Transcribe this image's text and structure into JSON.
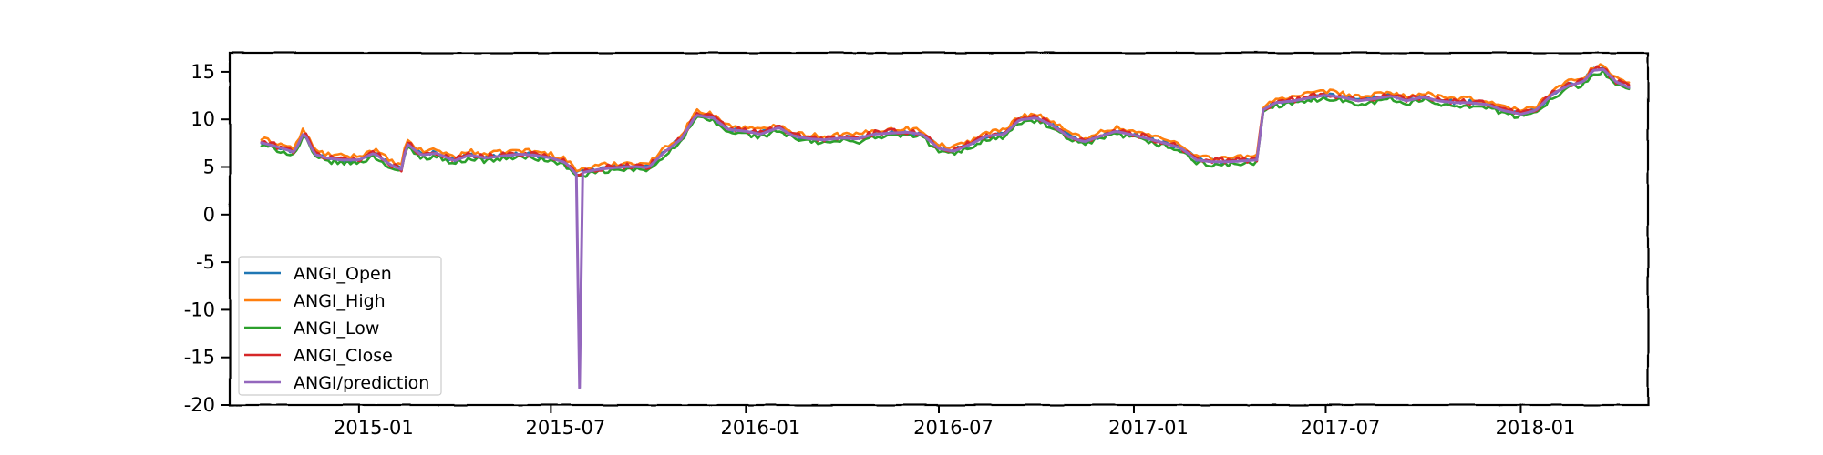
{
  "chart_data": {
    "type": "line",
    "title": "",
    "xlabel": "",
    "ylabel": "",
    "xlim": [
      "2014-09-01",
      "2018-05-01"
    ],
    "ylim": [
      -20,
      17
    ],
    "y_ticks": [
      15,
      10,
      5,
      0,
      -5,
      -10,
      -15,
      -20
    ],
    "y_tick_labels": [
      "15",
      "10",
      "5",
      "0",
      "-5",
      "-10",
      "-15",
      "-20"
    ],
    "x_ticks": [
      "2015-01-01",
      "2015-07-01",
      "2016-01-01",
      "2016-07-01",
      "2017-01-01",
      "2017-07-01",
      "2018-01-01"
    ],
    "x_tick_labels": [
      "2015-01",
      "2015-07",
      "2016-01",
      "2016-07",
      "2017-01",
      "2017-07",
      "2018-01"
    ],
    "grid": false,
    "legend_position": "lower-left",
    "style": "xkcd",
    "colors": {
      "ANGI_Open": "#1f77b4",
      "ANGI_High": "#ff7f0e",
      "ANGI_Low": "#2ca02c",
      "ANGI_Close": "#d62728",
      "ANGI/prediction": "#9467bd"
    },
    "series": [
      {
        "name": "ANGI_Open"
      },
      {
        "name": "ANGI_High"
      },
      {
        "name": "ANGI_Low"
      },
      {
        "name": "ANGI_Close"
      },
      {
        "name": "ANGI/prediction"
      }
    ],
    "base_x": [
      "2014-10-01",
      "2014-10-15",
      "2014-11-01",
      "2014-11-10",
      "2014-11-20",
      "2014-12-01",
      "2014-12-15",
      "2015-01-01",
      "2015-01-15",
      "2015-02-01",
      "2015-02-10",
      "2015-02-15",
      "2015-03-01",
      "2015-03-15",
      "2015-04-01",
      "2015-04-15",
      "2015-05-01",
      "2015-05-15",
      "2015-06-01",
      "2015-06-15",
      "2015-07-01",
      "2015-07-15",
      "2015-07-25",
      "2015-08-01",
      "2015-08-15",
      "2015-09-01",
      "2015-09-15",
      "2015-10-01",
      "2015-10-15",
      "2015-11-01",
      "2015-11-15",
      "2015-12-01",
      "2015-12-15",
      "2016-01-01",
      "2016-01-15",
      "2016-02-01",
      "2016-02-15",
      "2016-03-01",
      "2016-03-15",
      "2016-04-01",
      "2016-04-15",
      "2016-05-01",
      "2016-05-15",
      "2016-06-01",
      "2016-06-15",
      "2016-07-01",
      "2016-07-15",
      "2016-08-01",
      "2016-08-15",
      "2016-09-01",
      "2016-09-15",
      "2016-10-01",
      "2016-10-15",
      "2016-11-01",
      "2016-11-15",
      "2016-12-01",
      "2016-12-15",
      "2017-01-01",
      "2017-01-15",
      "2017-02-01",
      "2017-02-15",
      "2017-03-01",
      "2017-03-15",
      "2017-04-01",
      "2017-04-15",
      "2017-04-28",
      "2017-05-02",
      "2017-05-15",
      "2017-06-01",
      "2017-06-15",
      "2017-07-01",
      "2017-07-15",
      "2017-08-01",
      "2017-08-15",
      "2017-09-01",
      "2017-09-15",
      "2017-10-01",
      "2017-10-15",
      "2017-11-01",
      "2017-11-15",
      "2017-12-01",
      "2017-12-15",
      "2018-01-01",
      "2018-01-15",
      "2018-02-01",
      "2018-02-15",
      "2018-03-01",
      "2018-03-10",
      "2018-03-20",
      "2018-04-01",
      "2018-04-15"
    ],
    "base_y": [
      7.6,
      7.2,
      6.6,
      8.7,
      6.4,
      6.0,
      5.8,
      5.8,
      6.5,
      5.2,
      4.8,
      7.5,
      6.3,
      6.5,
      5.7,
      6.3,
      6.0,
      6.2,
      6.4,
      6.3,
      6.0,
      5.5,
      4.3,
      4.5,
      4.8,
      5.0,
      5.1,
      5.0,
      6.5,
      8.0,
      10.5,
      10.2,
      9.0,
      8.8,
      8.5,
      9.2,
      8.3,
      8.0,
      7.9,
      8.1,
      8.0,
      8.5,
      8.6,
      8.7,
      8.5,
      7.0,
      6.7,
      7.5,
      8.3,
      8.5,
      10.0,
      10.2,
      9.5,
      8.2,
      7.7,
      8.3,
      8.8,
      8.4,
      8.0,
      7.5,
      7.0,
      5.8,
      5.6,
      5.6,
      5.7,
      5.8,
      11.0,
      11.8,
      12.0,
      12.3,
      12.6,
      12.4,
      12.0,
      12.2,
      12.5,
      12.0,
      12.4,
      12.0,
      11.8,
      11.8,
      11.6,
      11.0,
      10.6,
      11.0,
      12.8,
      13.6,
      14.0,
      15.2,
      15.3,
      14.0,
      13.3
    ],
    "prediction_spike": {
      "x": "2015-07-28",
      "y": -18.2
    }
  }
}
